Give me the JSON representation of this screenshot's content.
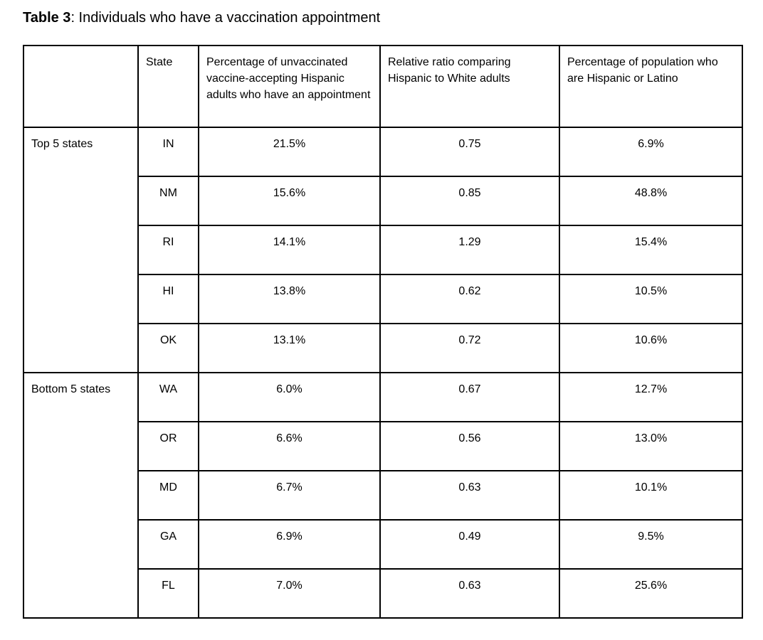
{
  "title": {
    "label": "Table 3",
    "text": ": Individuals who have a vaccination appointment"
  },
  "table": {
    "columns": {
      "corner": "",
      "state": "State",
      "pct_appointment": "Percentage of unvaccinated vaccine-accepting Hispanic adults who have an appointment",
      "relative_ratio": "Relative ratio comparing Hispanic to White adults",
      "pct_population": "Percentage of population who are Hispanic or Latino"
    },
    "groups": [
      {
        "label": "Top 5 states",
        "rows": [
          {
            "state": "IN",
            "pct_appointment": "21.5%",
            "relative_ratio": "0.75",
            "pct_population": "6.9%"
          },
          {
            "state": "NM",
            "pct_appointment": "15.6%",
            "relative_ratio": "0.85",
            "pct_population": "48.8%"
          },
          {
            "state": "RI",
            "pct_appointment": "14.1%",
            "relative_ratio": "1.29",
            "pct_population": "15.4%"
          },
          {
            "state": "HI",
            "pct_appointment": "13.8%",
            "relative_ratio": "0.62",
            "pct_population": "10.5%"
          },
          {
            "state": "OK",
            "pct_appointment": "13.1%",
            "relative_ratio": "0.72",
            "pct_population": "10.6%"
          }
        ]
      },
      {
        "label": "Bottom 5 states",
        "rows": [
          {
            "state": "WA",
            "pct_appointment": "6.0%",
            "relative_ratio": "0.67",
            "pct_population": "12.7%"
          },
          {
            "state": "OR",
            "pct_appointment": "6.6%",
            "relative_ratio": "0.56",
            "pct_population": "13.0%"
          },
          {
            "state": "MD",
            "pct_appointment": "6.7%",
            "relative_ratio": "0.63",
            "pct_population": "10.1%"
          },
          {
            "state": "GA",
            "pct_appointment": "6.9%",
            "relative_ratio": "0.49",
            "pct_population": "9.5%"
          },
          {
            "state": "FL",
            "pct_appointment": "7.0%",
            "relative_ratio": "0.63",
            "pct_population": "25.6%"
          }
        ]
      }
    ]
  }
}
